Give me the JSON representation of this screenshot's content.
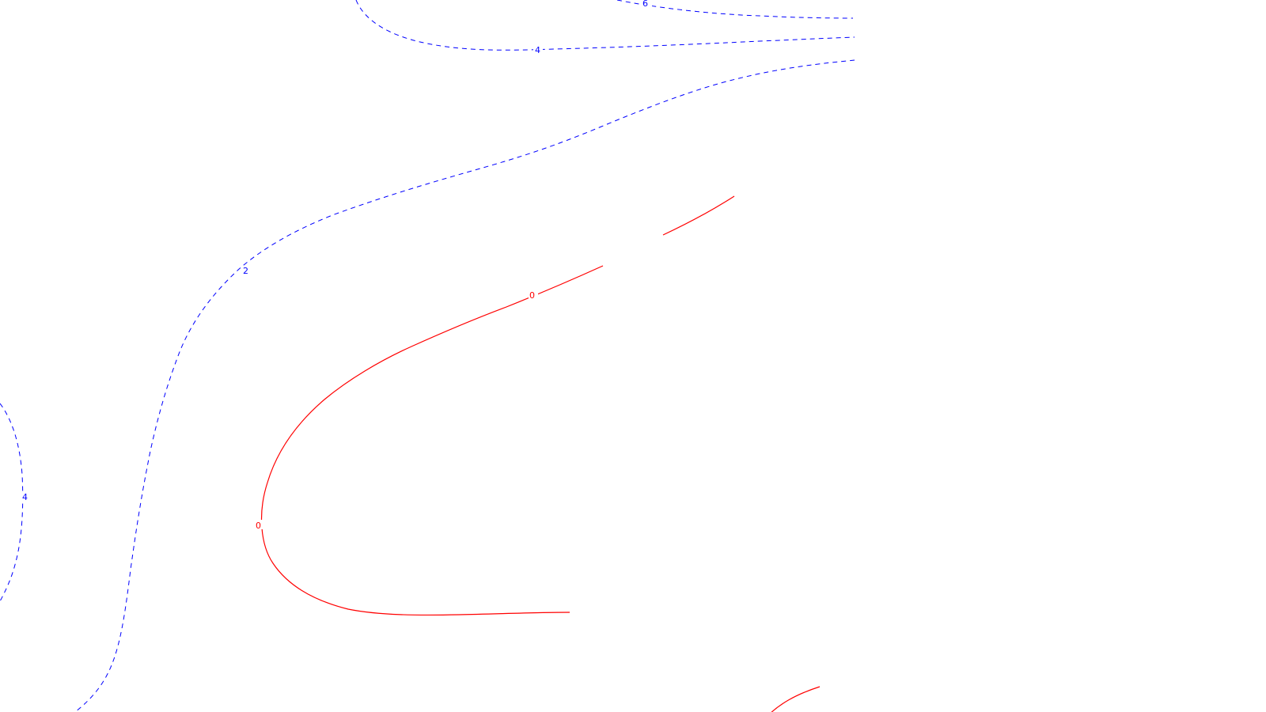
{
  "colors": {
    "background": "#ffffff",
    "negative_contour": "#0000ff",
    "zero_contour": "#ff0000"
  },
  "contour_labels": {
    "top_right_6": "6",
    "top_4": "4",
    "left_2": "2",
    "far_left_4": "4",
    "zero_upper": "0",
    "zero_left": "0"
  }
}
